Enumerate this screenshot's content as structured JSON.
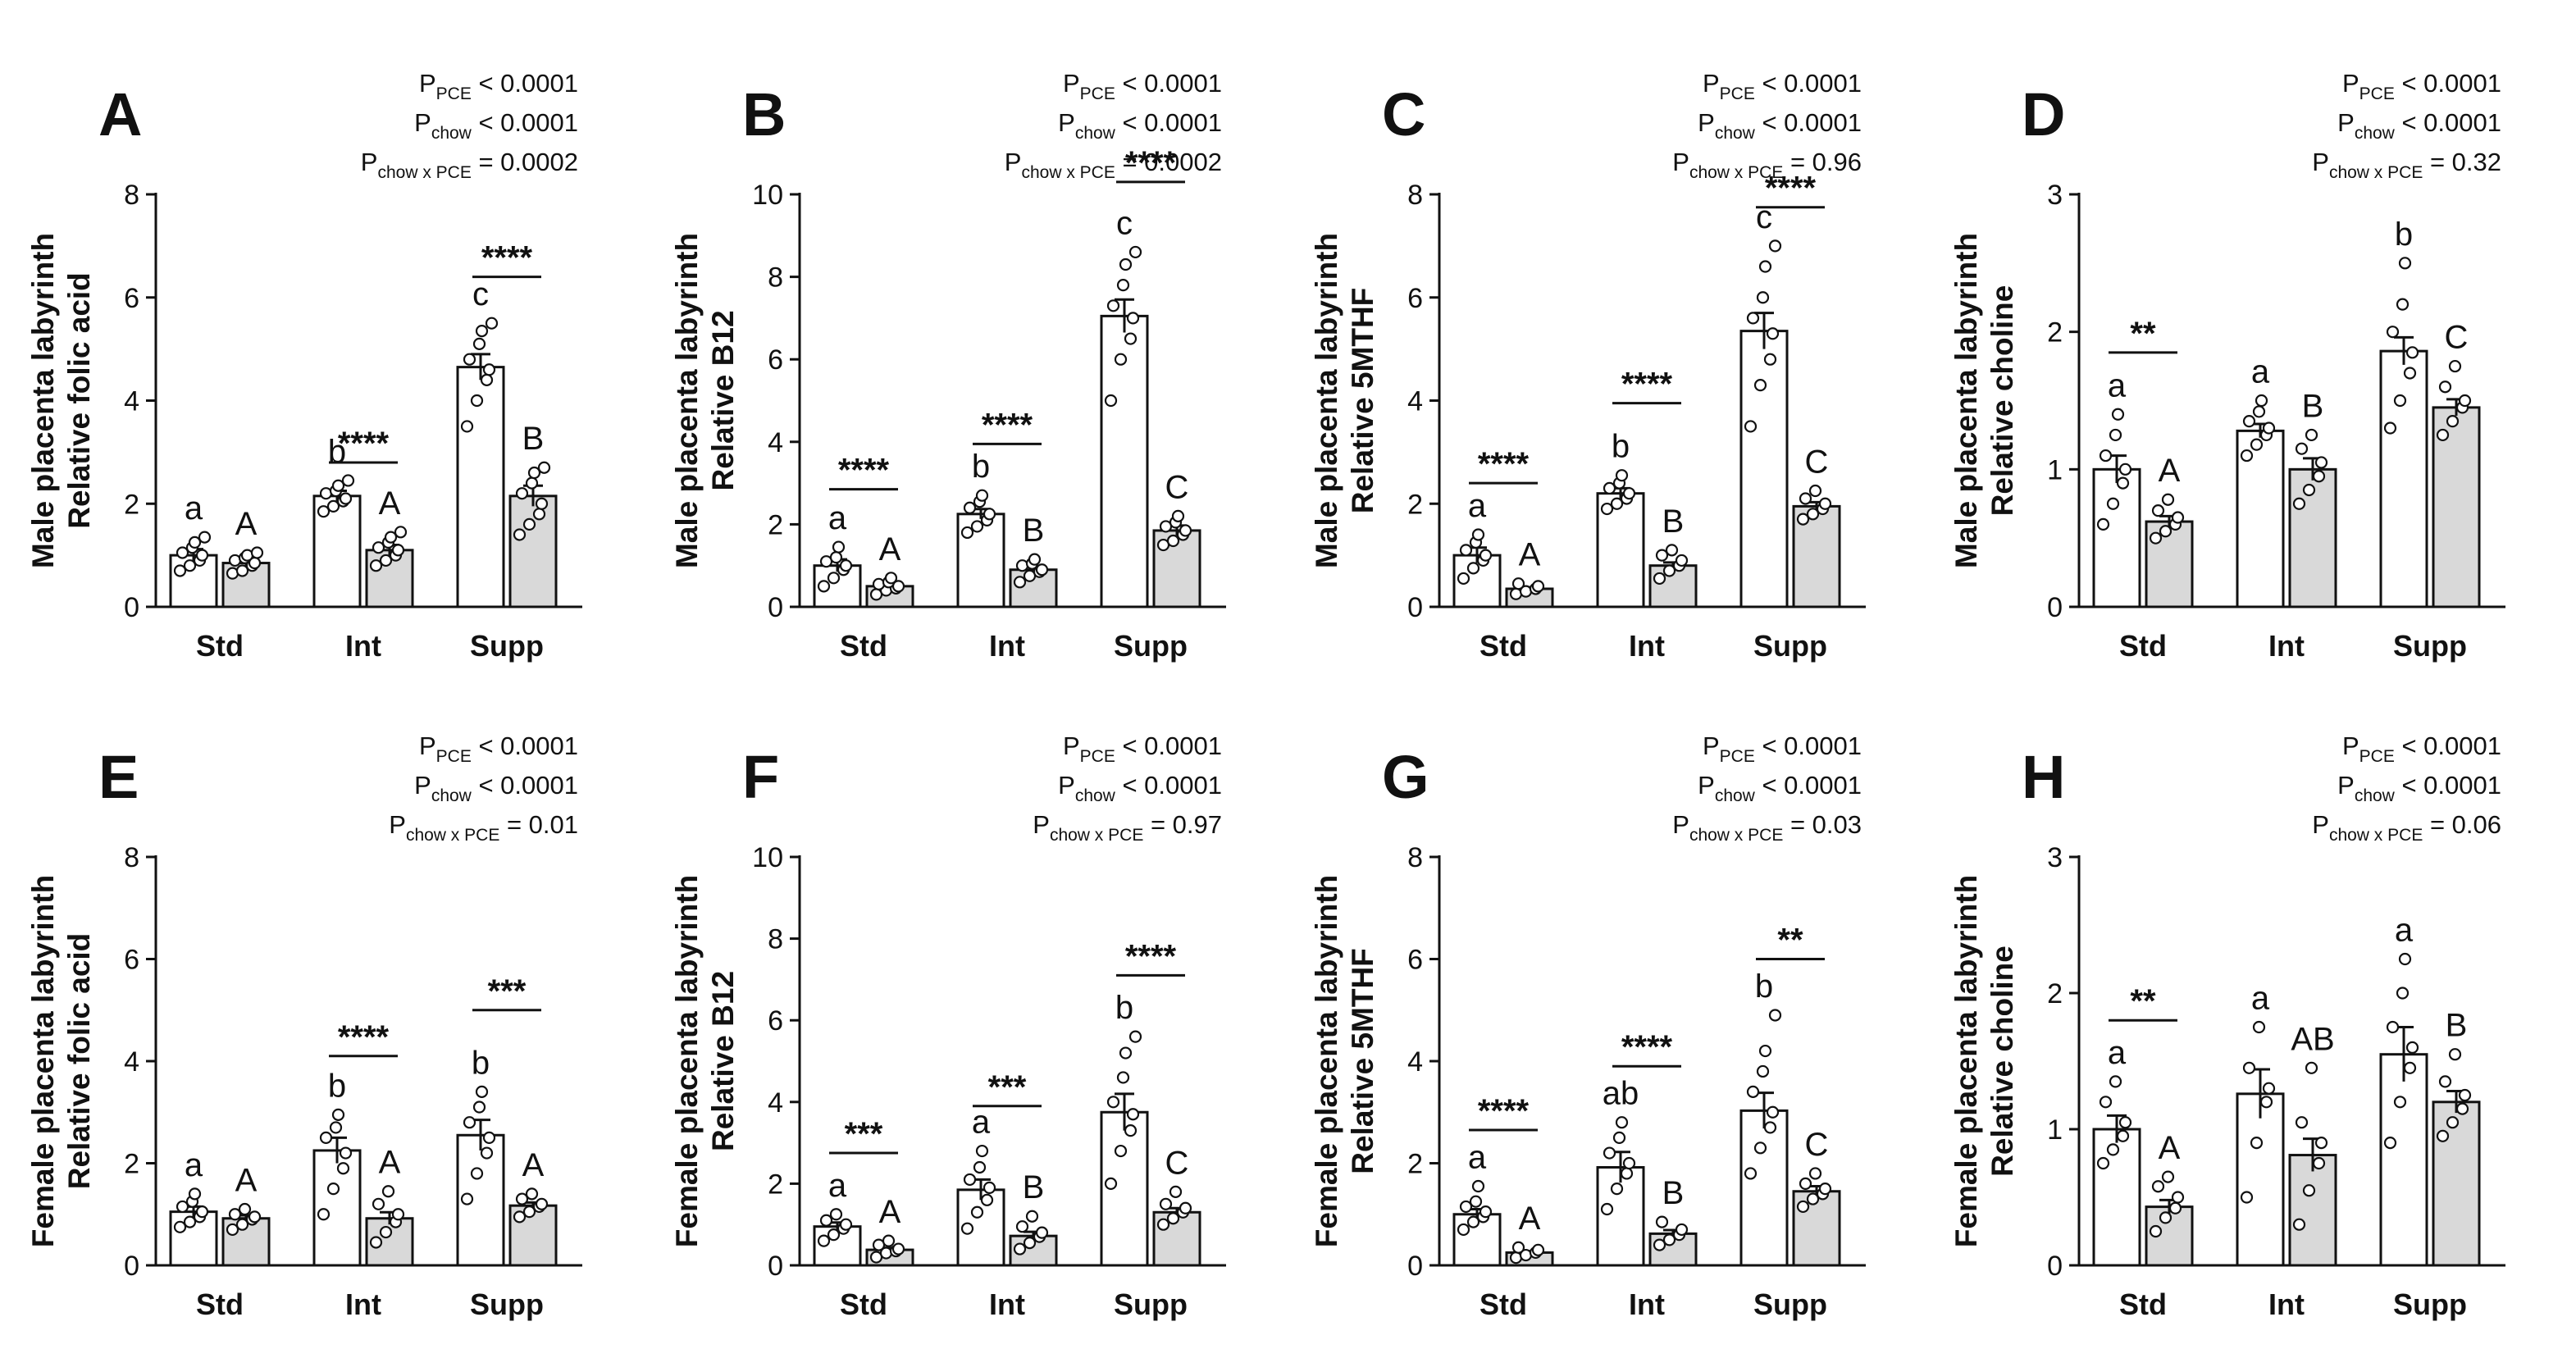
{
  "figure": {
    "colors": {
      "control": "#ffffff",
      "pce": "#d9d9d9",
      "ink": "#111111"
    },
    "categories": [
      "Std",
      "Int",
      "Supp"
    ]
  },
  "chart_data": [
    {
      "type": "bar",
      "panel": "A",
      "title": "",
      "ylabel": [
        "Male placenta labyrinth",
        "Relative folic acid"
      ],
      "ylim": [
        0,
        8
      ],
      "yticks": [
        0,
        2,
        4,
        6,
        8
      ],
      "categories": [
        "Std",
        "Int",
        "Supp"
      ],
      "series": [
        {
          "name": "Control",
          "values": [
            1.0,
            2.15,
            4.65
          ],
          "sem": [
            0.12,
            0.1,
            0.25
          ],
          "points": [
            [
              0.7,
              0.8,
              0.9,
              1.0,
              1.05,
              1.15,
              1.25,
              1.35
            ],
            [
              1.85,
              1.95,
              2.05,
              2.1,
              2.2,
              2.25,
              2.35,
              2.45
            ],
            [
              3.5,
              4.0,
              4.4,
              4.6,
              4.8,
              5.1,
              5.35,
              5.5
            ]
          ],
          "letters": [
            "a",
            "b",
            "c"
          ]
        },
        {
          "name": "PCE",
          "values": [
            0.85,
            1.1,
            2.15
          ],
          "sem": [
            0.07,
            0.1,
            0.2
          ],
          "points": [
            [
              0.65,
              0.7,
              0.8,
              0.85,
              0.9,
              0.95,
              1.0,
              1.05
            ],
            [
              0.8,
              0.9,
              1.0,
              1.1,
              1.15,
              1.25,
              1.35,
              1.45
            ],
            [
              1.4,
              1.6,
              1.8,
              2.0,
              2.2,
              2.4,
              2.6,
              2.7
            ]
          ],
          "letters": [
            "A",
            "A",
            "B"
          ]
        }
      ],
      "significance": [
        "****",
        "****",
        "****"
      ],
      "sig_levels": [
        null,
        2.8,
        6.4
      ],
      "stats": [
        {
          "sub": "PCE",
          "text": " < 0.0001"
        },
        {
          "sub": "chow",
          "text": " < 0.0001"
        },
        {
          "sub": "chow x PCE",
          "text": " = 0.0002"
        }
      ]
    },
    {
      "type": "bar",
      "panel": "B",
      "title": "",
      "ylabel": [
        "Male placenta labyrinth",
        "Relative B12"
      ],
      "ylim": [
        0,
        10
      ],
      "yticks": [
        0,
        2,
        4,
        6,
        8,
        10
      ],
      "categories": [
        "Std",
        "Int",
        "Supp"
      ],
      "series": [
        {
          "name": "Control",
          "values": [
            1.0,
            2.25,
            7.05
          ],
          "sem": [
            0.15,
            0.12,
            0.4
          ],
          "points": [
            [
              0.5,
              0.7,
              0.9,
              1.0,
              1.1,
              1.2,
              1.45
            ],
            [
              1.8,
              1.95,
              2.1,
              2.25,
              2.4,
              2.55,
              2.7
            ],
            [
              5.0,
              6.0,
              6.5,
              7.0,
              7.3,
              7.8,
              8.3,
              8.6
            ]
          ],
          "letters": [
            "a",
            "b",
            "c"
          ]
        },
        {
          "name": "PCE",
          "values": [
            0.5,
            0.9,
            1.85
          ],
          "sem": [
            0.05,
            0.08,
            0.12
          ],
          "points": [
            [
              0.3,
              0.4,
              0.45,
              0.5,
              0.55,
              0.6,
              0.7
            ],
            [
              0.6,
              0.75,
              0.85,
              0.9,
              1.0,
              1.05,
              1.15
            ],
            [
              1.5,
              1.6,
              1.75,
              1.85,
              1.95,
              2.05,
              2.2
            ]
          ],
          "letters": [
            "A",
            "B",
            "C"
          ]
        }
      ],
      "significance": [
        "****",
        "****",
        "****"
      ],
      "sig_levels": [
        2.85,
        3.95,
        10.3
      ],
      "stats": [
        {
          "sub": "PCE",
          "text": " < 0.0001"
        },
        {
          "sub": "chow",
          "text": " < 0.0001"
        },
        {
          "sub": "chow x PCE",
          "text": " = 0.0002"
        }
      ]
    },
    {
      "type": "bar",
      "panel": "C",
      "title": "",
      "ylabel": [
        "Male placenta labyrinth",
        "Relative 5MTHF"
      ],
      "ylim": [
        0,
        8
      ],
      "yticks": [
        0,
        2,
        4,
        6,
        8
      ],
      "categories": [
        "Std",
        "Int",
        "Supp"
      ],
      "series": [
        {
          "name": "Control",
          "values": [
            1.0,
            2.2,
            5.35
          ],
          "sem": [
            0.15,
            0.1,
            0.35
          ],
          "points": [
            [
              0.55,
              0.75,
              0.9,
              1.0,
              1.1,
              1.25,
              1.4
            ],
            [
              1.9,
              2.0,
              2.1,
              2.2,
              2.3,
              2.4,
              2.55
            ],
            [
              3.5,
              4.3,
              4.8,
              5.3,
              5.6,
              6.0,
              6.6,
              7.0
            ]
          ],
          "letters": [
            "a",
            "b",
            "c"
          ]
        },
        {
          "name": "PCE",
          "values": [
            0.35,
            0.8,
            1.95
          ],
          "sem": [
            0.03,
            0.06,
            0.08
          ],
          "points": [
            [
              0.25,
              0.3,
              0.35,
              0.4,
              0.45
            ],
            [
              0.55,
              0.7,
              0.8,
              0.9,
              1.0,
              1.1
            ],
            [
              1.7,
              1.8,
              1.9,
              2.0,
              2.1,
              2.25
            ]
          ],
          "letters": [
            "A",
            "B",
            "C"
          ]
        }
      ],
      "significance": [
        "****",
        "****",
        "****"
      ],
      "sig_levels": [
        2.4,
        3.95,
        7.75
      ],
      "stats": [
        {
          "sub": "PCE",
          "text": " < 0.0001"
        },
        {
          "sub": "chow",
          "text": " < 0.0001"
        },
        {
          "sub": "chow x PCE",
          "text": " = 0.96"
        }
      ]
    },
    {
      "type": "bar",
      "panel": "D",
      "title": "",
      "ylabel": [
        "Male placenta labyrinth",
        "Relative choline"
      ],
      "ylim": [
        0,
        3
      ],
      "yticks": [
        0,
        1,
        2,
        3
      ],
      "categories": [
        "Std",
        "Int",
        "Supp"
      ],
      "series": [
        {
          "name": "Control",
          "values": [
            1.0,
            1.28,
            1.86
          ],
          "sem": [
            0.1,
            0.05,
            0.1
          ],
          "points": [
            [
              0.6,
              0.75,
              0.9,
              1.0,
              1.1,
              1.25,
              1.4
            ],
            [
              1.1,
              1.18,
              1.25,
              1.3,
              1.35,
              1.42,
              1.5
            ],
            [
              1.3,
              1.5,
              1.7,
              1.85,
              2.0,
              2.2,
              2.5
            ]
          ],
          "letters": [
            "a",
            "a",
            "b"
          ]
        },
        {
          "name": "PCE",
          "values": [
            0.62,
            1.0,
            1.45
          ],
          "sem": [
            0.04,
            0.08,
            0.06
          ],
          "points": [
            [
              0.5,
              0.55,
              0.6,
              0.65,
              0.7,
              0.78
            ],
            [
              0.75,
              0.85,
              0.95,
              1.05,
              1.15,
              1.25
            ],
            [
              1.25,
              1.35,
              1.45,
              1.5,
              1.6,
              1.75
            ]
          ],
          "letters": [
            "A",
            "B",
            "C"
          ]
        }
      ],
      "significance": [
        "**",
        null,
        null
      ],
      "sig_levels": [
        1.85,
        null,
        null
      ],
      "stats": [
        {
          "sub": "PCE",
          "text": " < 0.0001"
        },
        {
          "sub": "chow",
          "text": " < 0.0001"
        },
        {
          "sub": "chow x PCE",
          "text": " = 0.32"
        }
      ]
    },
    {
      "type": "bar",
      "panel": "E",
      "title": "",
      "ylabel": [
        "Female placenta labyrinth",
        "Relative folic acid"
      ],
      "ylim": [
        0,
        8
      ],
      "yticks": [
        0,
        2,
        4,
        6,
        8
      ],
      "categories": [
        "Std",
        "Int",
        "Supp"
      ],
      "series": [
        {
          "name": "Control",
          "values": [
            1.05,
            2.25,
            2.55
          ],
          "sem": [
            0.1,
            0.25,
            0.3
          ],
          "points": [
            [
              0.75,
              0.85,
              0.95,
              1.05,
              1.15,
              1.25,
              1.4
            ],
            [
              1.0,
              1.5,
              1.9,
              2.2,
              2.5,
              2.7,
              2.95
            ],
            [
              1.3,
              1.8,
              2.2,
              2.5,
              2.8,
              3.1,
              3.4
            ]
          ],
          "letters": [
            "a",
            "b",
            "b"
          ]
        },
        {
          "name": "PCE",
          "values": [
            0.92,
            0.92,
            1.17
          ],
          "sem": [
            0.06,
            0.12,
            0.06
          ],
          "points": [
            [
              0.7,
              0.8,
              0.9,
              0.95,
              1.0,
              1.1
            ],
            [
              0.45,
              0.65,
              0.85,
              1.0,
              1.2,
              1.45
            ],
            [
              0.95,
              1.05,
              1.15,
              1.2,
              1.3,
              1.4
            ]
          ],
          "letters": [
            "A",
            "A",
            "A"
          ]
        }
      ],
      "significance": [
        null,
        "****",
        "***"
      ],
      "sig_levels": [
        null,
        4.1,
        5.0
      ],
      "stats": [
        {
          "sub": "PCE",
          "text": " < 0.0001"
        },
        {
          "sub": "chow",
          "text": " < 0.0001"
        },
        {
          "sub": "chow x PCE",
          "text": " = 0.01"
        }
      ]
    },
    {
      "type": "bar",
      "panel": "F",
      "title": "",
      "ylabel": [
        "Female placenta labyrinth",
        "Relative B12"
      ],
      "ylim": [
        0,
        10
      ],
      "yticks": [
        0,
        2,
        4,
        6,
        8,
        10
      ],
      "categories": [
        "Std",
        "Int",
        "Supp"
      ],
      "series": [
        {
          "name": "Control",
          "values": [
            0.95,
            1.85,
            3.75
          ],
          "sem": [
            0.1,
            0.25,
            0.45
          ],
          "points": [
            [
              0.6,
              0.75,
              0.9,
              1.0,
              1.1,
              1.25
            ],
            [
              0.9,
              1.3,
              1.6,
              1.9,
              2.1,
              2.4,
              2.8
            ],
            [
              2.0,
              2.8,
              3.3,
              3.7,
              4.0,
              4.6,
              5.2,
              5.6
            ]
          ],
          "letters": [
            "a",
            "a",
            "b"
          ]
        },
        {
          "name": "PCE",
          "values": [
            0.38,
            0.72,
            1.3
          ],
          "sem": [
            0.05,
            0.1,
            0.1
          ],
          "points": [
            [
              0.2,
              0.3,
              0.35,
              0.4,
              0.5,
              0.6
            ],
            [
              0.4,
              0.55,
              0.7,
              0.8,
              0.95,
              1.2
            ],
            [
              1.0,
              1.15,
              1.3,
              1.4,
              1.5,
              1.8
            ]
          ],
          "letters": [
            "A",
            "B",
            "C"
          ]
        }
      ],
      "significance": [
        "***",
        "***",
        "****"
      ],
      "sig_levels": [
        2.75,
        3.9,
        7.1
      ],
      "stats": [
        {
          "sub": "PCE",
          "text": " < 0.0001"
        },
        {
          "sub": "chow",
          "text": " < 0.0001"
        },
        {
          "sub": "chow x PCE",
          "text": " = 0.97"
        }
      ]
    },
    {
      "type": "bar",
      "panel": "G",
      "title": "",
      "ylabel": [
        "Female placenta labyrinth",
        "Relative 5MTHF"
      ],
      "ylim": [
        0,
        8
      ],
      "yticks": [
        0,
        2,
        4,
        6,
        8
      ],
      "categories": [
        "Std",
        "Int",
        "Supp"
      ],
      "series": [
        {
          "name": "Control",
          "values": [
            1.0,
            1.92,
            3.03
          ],
          "sem": [
            0.1,
            0.3,
            0.35
          ],
          "points": [
            [
              0.7,
              0.85,
              0.95,
              1.05,
              1.15,
              1.25,
              1.55
            ],
            [
              1.1,
              1.5,
              1.8,
              2.0,
              2.2,
              2.5,
              2.8
            ],
            [
              1.8,
              2.3,
              2.7,
              3.0,
              3.4,
              3.8,
              4.2,
              4.9
            ]
          ],
          "letters": [
            "a",
            "ab",
            "b"
          ]
        },
        {
          "name": "PCE",
          "values": [
            0.25,
            0.62,
            1.45
          ],
          "sem": [
            0.03,
            0.07,
            0.1
          ],
          "points": [
            [
              0.15,
              0.2,
              0.25,
              0.3,
              0.35
            ],
            [
              0.4,
              0.5,
              0.6,
              0.7,
              0.85
            ],
            [
              1.15,
              1.3,
              1.4,
              1.5,
              1.6,
              1.8
            ]
          ],
          "letters": [
            "A",
            "B",
            "C"
          ]
        }
      ],
      "significance": [
        "****",
        "****",
        "**"
      ],
      "sig_levels": [
        2.65,
        3.9,
        6.0
      ],
      "stats": [
        {
          "sub": "PCE",
          "text": " < 0.0001"
        },
        {
          "sub": "chow",
          "text": " < 0.0001"
        },
        {
          "sub": "chow x PCE",
          "text": " = 0.03"
        }
      ]
    },
    {
      "type": "bar",
      "panel": "H",
      "title": "",
      "ylabel": [
        "Female placenta labyrinth",
        "Relative choline"
      ],
      "ylim": [
        0,
        3
      ],
      "yticks": [
        0,
        1,
        2,
        3
      ],
      "categories": [
        "Std",
        "Int",
        "Supp"
      ],
      "series": [
        {
          "name": "Control",
          "values": [
            1.0,
            1.26,
            1.55
          ],
          "sem": [
            0.1,
            0.18,
            0.2
          ],
          "points": [
            [
              0.75,
              0.85,
              0.95,
              1.05,
              1.2,
              1.35
            ],
            [
              0.5,
              0.9,
              1.2,
              1.3,
              1.45,
              1.75
            ],
            [
              0.9,
              1.2,
              1.45,
              1.6,
              1.75,
              2.0,
              2.25
            ]
          ],
          "letters": [
            "a",
            "a",
            "a"
          ]
        },
        {
          "name": "PCE",
          "values": [
            0.43,
            0.81,
            1.2
          ],
          "sem": [
            0.05,
            0.12,
            0.08
          ],
          "points": [
            [
              0.25,
              0.35,
              0.42,
              0.5,
              0.58,
              0.65
            ],
            [
              0.3,
              0.55,
              0.75,
              0.9,
              1.05,
              1.45
            ],
            [
              0.95,
              1.05,
              1.15,
              1.25,
              1.35,
              1.55
            ]
          ],
          "letters": [
            "A",
            "AB",
            "B"
          ]
        }
      ],
      "significance": [
        "**",
        null,
        null
      ],
      "sig_levels": [
        1.8,
        null,
        null
      ],
      "stats": [
        {
          "sub": "PCE",
          "text": " < 0.0001"
        },
        {
          "sub": "chow",
          "text": " < 0.0001"
        },
        {
          "sub": "chow x PCE",
          "text": " = 0.06"
        }
      ]
    }
  ]
}
